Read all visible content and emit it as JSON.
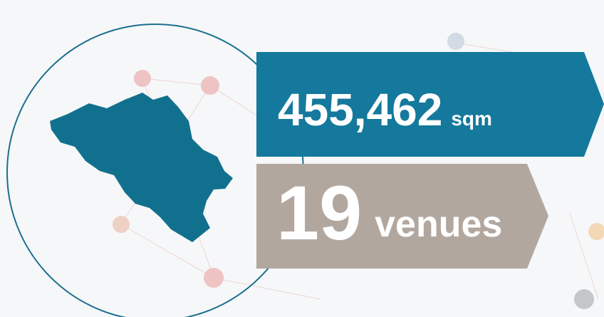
{
  "stats": [
    {
      "value": "455,462",
      "unit": "sqm"
    },
    {
      "value": "19",
      "unit": "venues"
    }
  ]
}
